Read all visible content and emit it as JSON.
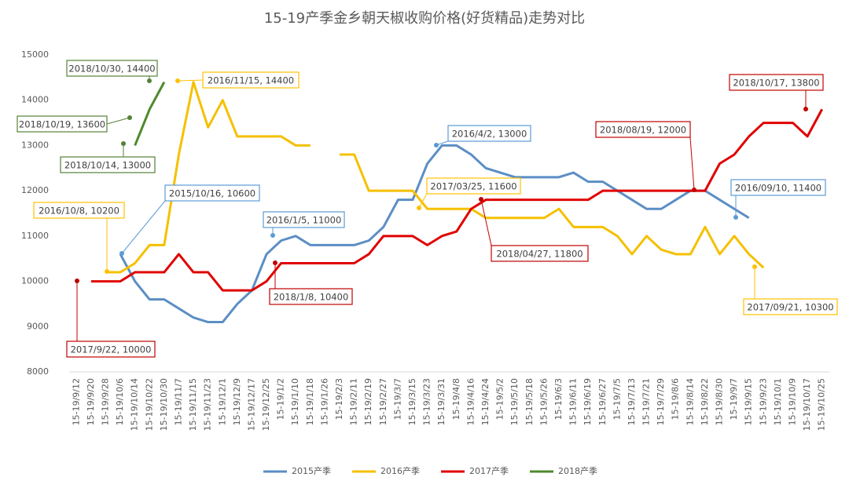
{
  "chart_data": {
    "type": "line",
    "title": "15-19产季金乡朝天椒收购价格(好货精品)走势对比",
    "categories": [
      "15-19/9/12",
      "15-19/9/20",
      "15-19/9/28",
      "15-19/10/6",
      "15-19/10/14",
      "15-19/10/22",
      "15-19/10/30",
      "15-19/11/7",
      "15-19/11/15",
      "15-19/11/23",
      "15-19/12/1",
      "15-19/12/9",
      "15-19/12/17",
      "15-19/12/25",
      "15-19/1/2",
      "15-19/1/10",
      "15-19/1/18",
      "15-19/1/26",
      "15-19/2/3",
      "15-19/2/11",
      "15-19/2/19",
      "15-19/2/27",
      "15-19/3/7",
      "15-19/3/15",
      "15-19/3/23",
      "15-19/3/31",
      "15-19/4/8",
      "15-19/4/16",
      "15-19/4/24",
      "15-19/5/2",
      "15-19/5/10",
      "15-19/5/18",
      "15-19/5/26",
      "15-19/6/3",
      "15-19/6/11",
      "15-19/6/19",
      "15-19/6/27",
      "15-19/7/5",
      "15-19/7/13",
      "15-19/7/21",
      "15-19/7/29",
      "15-19/8/6",
      "15-19/8/14",
      "15-19/8/22",
      "15-19/8/30",
      "15-19/9/7",
      "15-19/9/15",
      "15-19/9/23",
      "15-19/10/1",
      "15-19/10/9",
      "15-19/10/17",
      "15-19/10/25"
    ],
    "series": [
      {
        "name": "2015产季",
        "color": "#5b8ec4",
        "values": [
          null,
          null,
          null,
          10600,
          10000,
          9600,
          9600,
          9400,
          9200,
          9100,
          9100,
          9500,
          9800,
          10600,
          10900,
          11000,
          10800,
          10800,
          10800,
          10800,
          10900,
          11200,
          11800,
          11800,
          12600,
          13000,
          13000,
          12800,
          12500,
          12400,
          12300,
          12300,
          12300,
          12300,
          12400,
          12200,
          12200,
          12000,
          11800,
          11600,
          11600,
          11800,
          12000,
          12000,
          11800,
          11600,
          11400,
          null,
          null,
          null,
          null,
          null
        ]
      },
      {
        "name": "2016产季",
        "color": "#f5c000",
        "values": [
          null,
          null,
          10200,
          10200,
          10400,
          10800,
          10800,
          12800,
          14400,
          13400,
          14000,
          13200,
          13200,
          13200,
          13200,
          13000,
          13000,
          null,
          12800,
          12800,
          12000,
          12000,
          12000,
          12000,
          11600,
          11600,
          11600,
          11600,
          11400,
          11400,
          11400,
          11400,
          11400,
          11600,
          11200,
          11200,
          11200,
          11000,
          10600,
          11000,
          10700,
          10600,
          10600,
          11200,
          10600,
          11000,
          10600,
          10300,
          null,
          null,
          null,
          null
        ]
      },
      {
        "name": "2017产季",
        "color": "#e00000",
        "values": [
          null,
          10000,
          10000,
          10000,
          10200,
          10200,
          10200,
          10600,
          10200,
          10200,
          9800,
          9800,
          9800,
          10000,
          10400,
          10400,
          10400,
          10400,
          10400,
          10400,
          10600,
          11000,
          11000,
          11000,
          10800,
          11000,
          11100,
          11600,
          11800,
          11800,
          11800,
          11800,
          11800,
          11800,
          11800,
          11800,
          12000,
          12000,
          12000,
          12000,
          12000,
          12000,
          12000,
          12000,
          12600,
          12800,
          13200,
          13500,
          13500,
          13500,
          13200,
          13800
        ]
      },
      {
        "name": "2018产季",
        "color": "#4e8a2e",
        "values": [
          null,
          null,
          null,
          null,
          13000,
          13800,
          14400,
          null,
          null,
          null,
          null,
          null,
          null,
          null,
          null,
          null,
          null,
          null,
          null,
          null,
          null,
          null,
          null,
          null,
          null,
          null,
          null,
          null,
          null,
          null,
          null,
          null,
          null,
          null,
          null,
          null,
          null,
          null,
          null,
          null,
          null,
          null,
          null,
          null,
          null,
          null,
          null,
          null,
          null,
          null,
          null,
          null
        ]
      }
    ],
    "ylim": [
      8000,
      15000
    ],
    "yticks": [
      8000,
      9000,
      10000,
      11000,
      12000,
      13000,
      14000,
      15000
    ],
    "grid": false,
    "legend": "bottom",
    "annotations": [
      {
        "text": "2018/10/30, 14400",
        "color": "#548235"
      },
      {
        "text": "2018/10/19, 13600",
        "color": "#548235"
      },
      {
        "text": "2018/10/14, 13000",
        "color": "#548235"
      },
      {
        "text": "2016/11/15, 14400",
        "color": "#ffc000"
      },
      {
        "text": "2015/10/16, 10600",
        "color": "#5b9bd5"
      },
      {
        "text": "2016/10/8, 10200",
        "color": "#ffc000"
      },
      {
        "text": "2017/9/22, 10000",
        "color": "#c00000"
      },
      {
        "text": "2016/1/5, 11000",
        "color": "#5b9bd5"
      },
      {
        "text": "2018/1/8, 10400",
        "color": "#c00000"
      },
      {
        "text": "2016/4/2, 13000",
        "color": "#5b9bd5"
      },
      {
        "text": "2017/03/25, 11600",
        "color": "#ffc000"
      },
      {
        "text": "2018/04/27, 11800",
        "color": "#c00000"
      },
      {
        "text": "2018/08/19, 12000",
        "color": "#c00000"
      },
      {
        "text": "2016/09/10, 11400",
        "color": "#5b9bd5"
      },
      {
        "text": "2018/10/17, 13800",
        "color": "#c00000"
      },
      {
        "text": "2017/09/21, 10300",
        "color": "#ffc000"
      }
    ]
  }
}
